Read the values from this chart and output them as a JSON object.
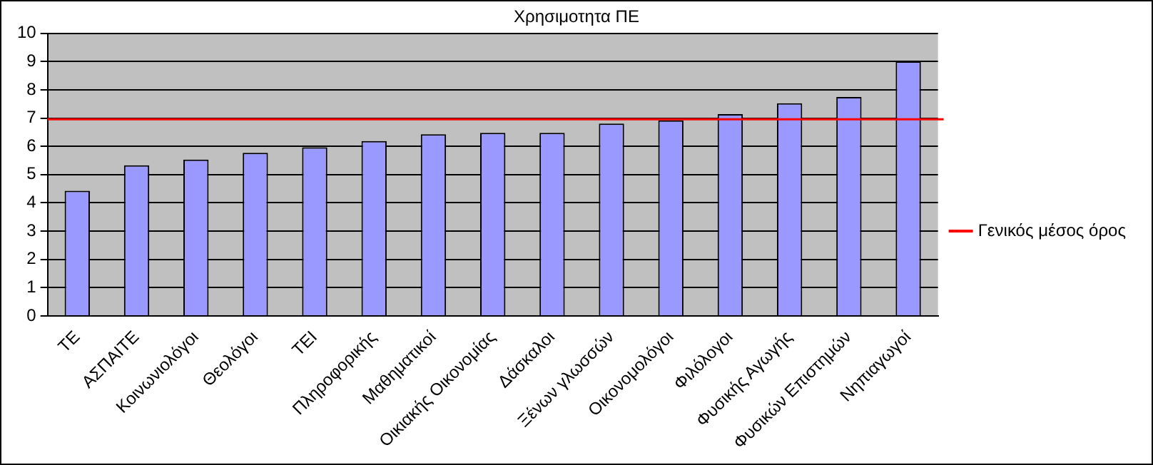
{
  "chart_data": {
    "type": "bar",
    "title": "Χρησιμοτητα ΠΕ",
    "categories": [
      "ΤΕ",
      "ΑΣΠΑΙΤΕ",
      "Κοινωνιολόγοι",
      "Θεολόγοι",
      "ΤΕΙ",
      "Πληροφορικής",
      "Μαθηματικοί",
      "Οικιακής Οικονομίας",
      "Δάσκαλοι",
      "Ξένων γλωσσών",
      "Οικονομολόγοι",
      "Φιλόλογοι",
      "Φυσικής Αγωγής",
      "Φυσικών Επιστημών",
      "Νηπιαγωγοί"
    ],
    "values": [
      4.43,
      5.33,
      5.53,
      5.77,
      5.97,
      6.19,
      6.43,
      6.48,
      6.48,
      6.81,
      6.92,
      7.14,
      7.53,
      7.75,
      9.01
    ],
    "color": "#9999ff",
    "ylim": [
      0,
      10
    ],
    "yticks": [
      0,
      1,
      2,
      3,
      4,
      5,
      6,
      7,
      8,
      9,
      10
    ],
    "grid": "y",
    "ref_lines": [
      {
        "axis": "y",
        "value": 6.96,
        "label": "Γενικός μέσος όρος",
        "color": "#ff0000"
      }
    ],
    "legend": "right"
  }
}
